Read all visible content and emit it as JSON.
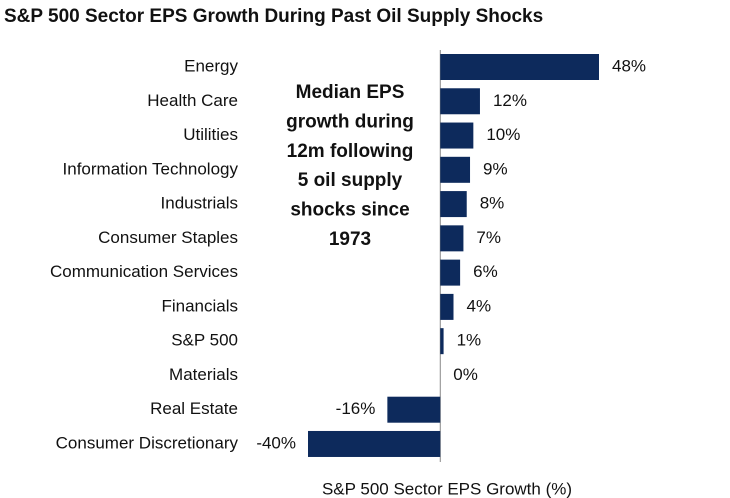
{
  "chart_data": {
    "type": "bar",
    "orientation": "horizontal",
    "title": "S&P 500 Sector EPS Growth During Past Oil Supply Shocks",
    "annotation": [
      "Median EPS",
      "growth during",
      "12m following",
      "5 oil supply",
      "shocks since",
      "1973"
    ],
    "x_label": "S&P 500 Sector EPS Growth (%)",
    "categories": [
      "Energy",
      "Health Care",
      "Utilities",
      "Information Technology",
      "Industrials",
      "Consumer Staples",
      "Communication Services",
      "Financials",
      "S&P 500",
      "Materials",
      "Real Estate",
      "Consumer Discretionary"
    ],
    "values": [
      48,
      12,
      10,
      9,
      8,
      7,
      6,
      4,
      1,
      0,
      -16,
      -40
    ],
    "value_labels": [
      "48%",
      "12%",
      "10%",
      "9%",
      "8%",
      "7%",
      "6%",
      "4%",
      "1%",
      "0%",
      "-16%",
      "-40%"
    ],
    "color": "#0d2a5c",
    "xlim": [
      -40,
      48
    ]
  }
}
